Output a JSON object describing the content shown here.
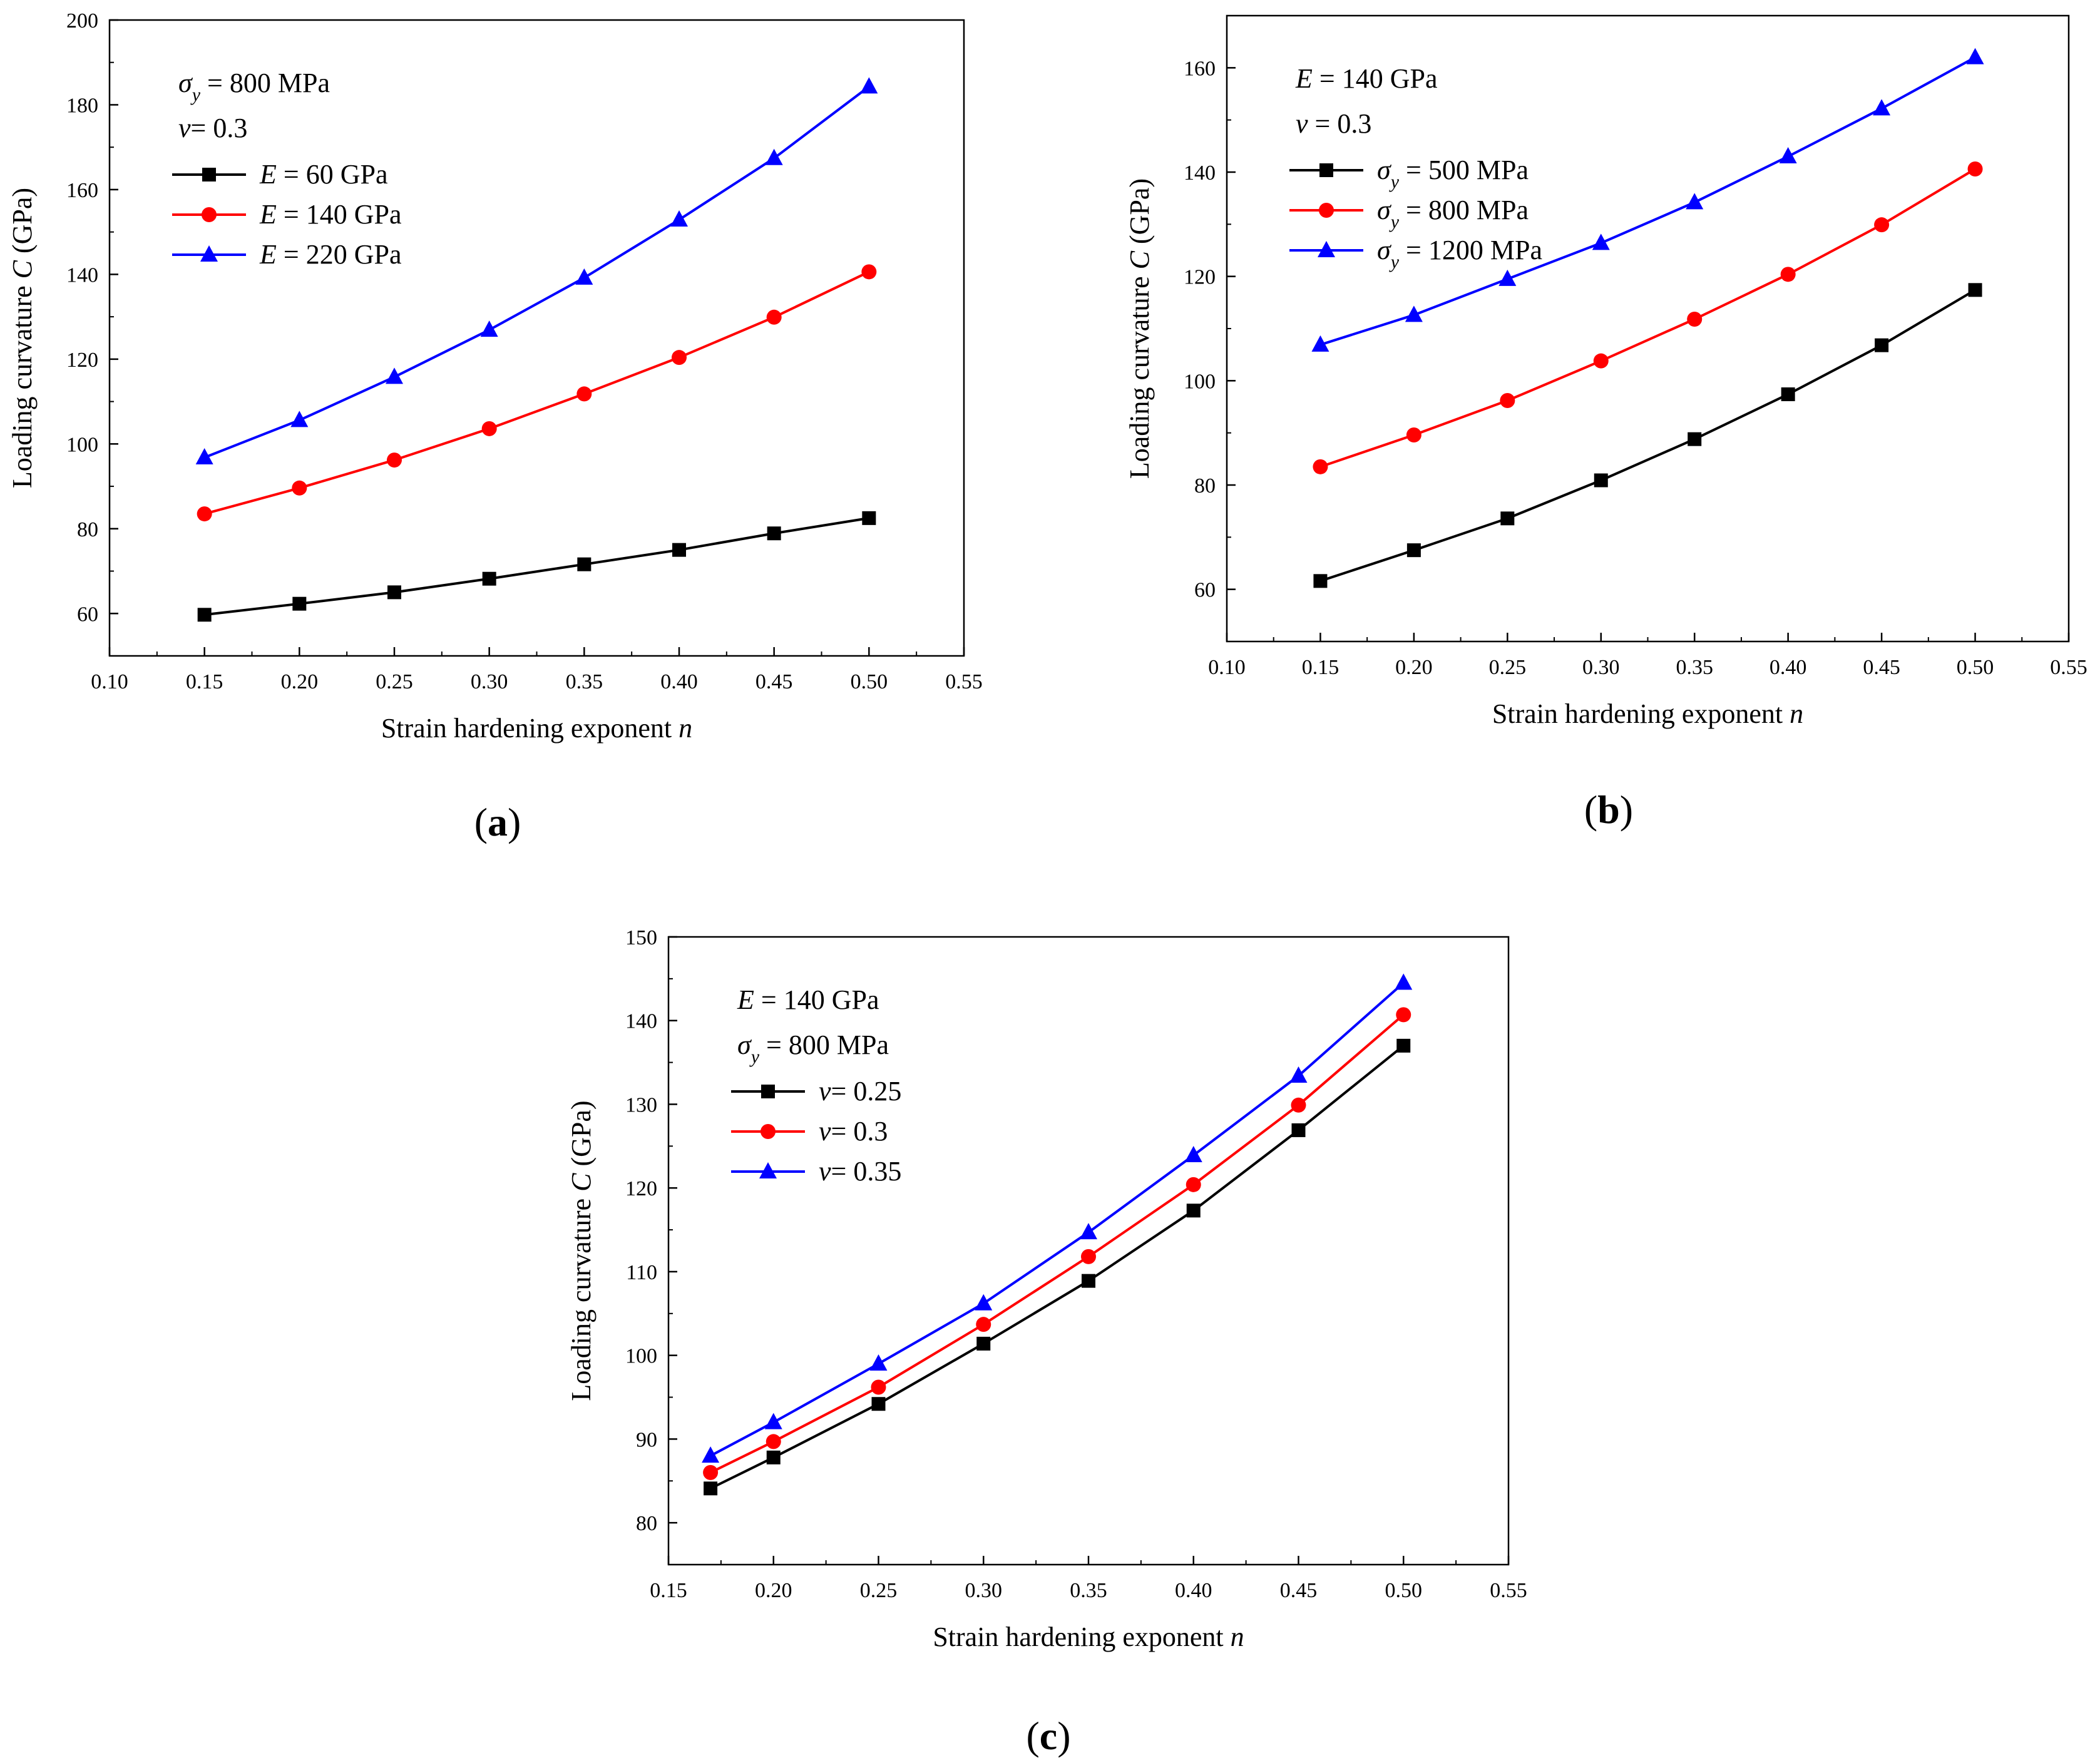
{
  "chart_data": [
    {
      "type": "line",
      "panel_label": {
        "open": "(",
        "letter": "a",
        "close": ")"
      },
      "xlabel": {
        "text": "Strain hardening exponent ",
        "var": "n"
      },
      "ylabel": {
        "text": "Loading curvature ",
        "var": "C",
        "unit": " (GPa)"
      },
      "xlim": [
        0.1,
        0.55
      ],
      "ylim": [
        50,
        200
      ],
      "xticks": [
        0.1,
        0.15,
        0.2,
        0.25,
        0.3,
        0.35,
        0.4,
        0.45,
        0.5,
        0.55
      ],
      "xtick_labels": [
        "0.10",
        "0.15",
        "0.20",
        "0.25",
        "0.30",
        "0.35",
        "0.40",
        "0.45",
        "0.50",
        "0.55"
      ],
      "yticks": [
        60,
        80,
        100,
        120,
        140,
        160,
        180,
        200
      ],
      "ytick_labels": [
        "60",
        "80",
        "100",
        "120",
        "140",
        "160",
        "180",
        "200"
      ],
      "annotations": [
        {
          "sym": "σ",
          "sub": "y",
          "rest": " = 800 MPa"
        },
        {
          "sym": "ν",
          "sub": "",
          "rest": "= 0.3"
        }
      ],
      "legend_position": "upper-left",
      "series": [
        {
          "name": "E = 60 GPa",
          "label_var": "E",
          "label_rest": " = 60 GPa",
          "color": "#000000",
          "marker": "square",
          "x": [
            0.15,
            0.2,
            0.25,
            0.3,
            0.35,
            0.4,
            0.45,
            0.5
          ],
          "values": [
            59.7,
            62.3,
            65.0,
            68.2,
            71.6,
            75.0,
            78.9,
            82.5
          ]
        },
        {
          "name": "E = 140 GPa",
          "label_var": "E",
          "label_rest": " = 140 GPa",
          "color": "#ff0000",
          "marker": "circle",
          "x": [
            0.15,
            0.2,
            0.25,
            0.3,
            0.35,
            0.4,
            0.45,
            0.5
          ],
          "values": [
            83.5,
            89.6,
            96.2,
            103.6,
            111.8,
            120.4,
            129.9,
            140.6
          ]
        },
        {
          "name": "E = 220 GPa",
          "label_var": "E",
          "label_rest": " = 220 GPa",
          "color": "#0000ff",
          "marker": "triangle",
          "x": [
            0.15,
            0.2,
            0.25,
            0.3,
            0.35,
            0.4,
            0.45,
            0.5
          ],
          "values": [
            96.8,
            105.6,
            115.8,
            126.9,
            139.2,
            152.9,
            167.4,
            184.3
          ]
        }
      ]
    },
    {
      "type": "line",
      "panel_label": {
        "open": "(",
        "letter": "b",
        "close": ")"
      },
      "xlabel": {
        "text": "Strain hardening exponent ",
        "var": "n"
      },
      "ylabel": {
        "text": "Loading curvature ",
        "var": "C",
        "unit": " (GPa)"
      },
      "xlim": [
        0.1,
        0.55
      ],
      "ylim": [
        50,
        170
      ],
      "xticks": [
        0.1,
        0.15,
        0.2,
        0.25,
        0.3,
        0.35,
        0.4,
        0.45,
        0.5,
        0.55
      ],
      "xtick_labels": [
        "0.10",
        "0.15",
        "0.20",
        "0.25",
        "0.30",
        "0.35",
        "0.40",
        "0.45",
        "0.50",
        "0.55"
      ],
      "yticks": [
        60,
        80,
        100,
        120,
        140,
        160
      ],
      "ytick_labels": [
        "60",
        "80",
        "100",
        "120",
        "140",
        "160"
      ],
      "annotations": [
        {
          "sym": "E",
          "sub": "",
          "rest": " = 140 GPa"
        },
        {
          "sym": "ν",
          "sub": "",
          "rest": " = 0.3"
        }
      ],
      "legend_position": "upper-left",
      "series": [
        {
          "name": "σy = 500 MPa",
          "label_var": "σ",
          "label_sub": "y",
          "label_rest": " = 500 MPa",
          "color": "#000000",
          "marker": "square",
          "x": [
            0.15,
            0.2,
            0.25,
            0.3,
            0.35,
            0.4,
            0.45,
            0.5
          ],
          "values": [
            61.6,
            67.5,
            73.6,
            80.9,
            88.8,
            97.4,
            106.8,
            117.4
          ]
        },
        {
          "name": "σy = 800 MPa",
          "label_var": "σ",
          "label_sub": "y",
          "label_rest": " = 800 MPa",
          "color": "#ff0000",
          "marker": "circle",
          "x": [
            0.15,
            0.2,
            0.25,
            0.3,
            0.35,
            0.4,
            0.45,
            0.5
          ],
          "values": [
            83.5,
            89.6,
            96.2,
            103.8,
            111.8,
            120.4,
            129.9,
            140.6
          ]
        },
        {
          "name": "σy = 1200 MPa",
          "label_var": "σ",
          "label_sub": "y",
          "label_rest": " = 1200 MPa",
          "color": "#0000ff",
          "marker": "triangle",
          "x": [
            0.15,
            0.2,
            0.25,
            0.3,
            0.35,
            0.4,
            0.45,
            0.5
          ],
          "values": [
            106.9,
            112.6,
            119.5,
            126.4,
            134.2,
            143.0,
            152.2,
            162.0
          ]
        }
      ]
    },
    {
      "type": "line",
      "panel_label": {
        "open": "(",
        "letter": "c",
        "close": ")"
      },
      "xlabel": {
        "text": "Strain hardening exponent ",
        "var": "n"
      },
      "ylabel": {
        "text": "Loading curvature ",
        "var": "C",
        "unit": " (GPa)"
      },
      "xlim": [
        0.15,
        0.55
      ],
      "ylim": [
        75,
        150
      ],
      "xticks": [
        0.15,
        0.2,
        0.25,
        0.3,
        0.35,
        0.4,
        0.45,
        0.5,
        0.55
      ],
      "xtick_labels": [
        "0.15",
        "0.20",
        "0.25",
        "0.30",
        "0.35",
        "0.40",
        "0.45",
        "0.50",
        "0.55"
      ],
      "yticks": [
        80,
        90,
        100,
        110,
        120,
        130,
        140,
        150
      ],
      "ytick_labels": [
        "80",
        "90",
        "100",
        "110",
        "120",
        "130",
        "140",
        "150"
      ],
      "annotations": [
        {
          "sym": "E",
          "sub": "",
          "rest": " = 140 GPa"
        },
        {
          "sym": "σ",
          "sub": "y",
          "rest": " = 800 MPa"
        }
      ],
      "legend_position": "upper-left",
      "series": [
        {
          "name": "ν = 0.25",
          "label_var": "ν",
          "label_rest": "= 0.25",
          "color": "#000000",
          "marker": "square",
          "x": [
            0.17,
            0.2,
            0.25,
            0.3,
            0.35,
            0.4,
            0.45,
            0.5
          ],
          "values": [
            84.1,
            87.8,
            94.2,
            101.4,
            108.9,
            117.3,
            126.9,
            137.0
          ]
        },
        {
          "name": "ν = 0.3",
          "label_var": "ν",
          "label_rest": "= 0.3",
          "color": "#ff0000",
          "marker": "circle",
          "x": [
            0.17,
            0.2,
            0.25,
            0.3,
            0.35,
            0.4,
            0.45,
            0.5
          ],
          "values": [
            86.0,
            89.7,
            96.2,
            103.7,
            111.8,
            120.4,
            129.9,
            140.7
          ]
        },
        {
          "name": "ν = 0.35",
          "label_var": "ν",
          "label_rest": "= 0.35",
          "color": "#0000ff",
          "marker": "triangle",
          "x": [
            0.17,
            0.2,
            0.25,
            0.3,
            0.35,
            0.4,
            0.45,
            0.5
          ],
          "values": [
            88.0,
            92.0,
            99.0,
            106.2,
            114.7,
            123.9,
            133.4,
            144.5
          ]
        }
      ]
    }
  ]
}
